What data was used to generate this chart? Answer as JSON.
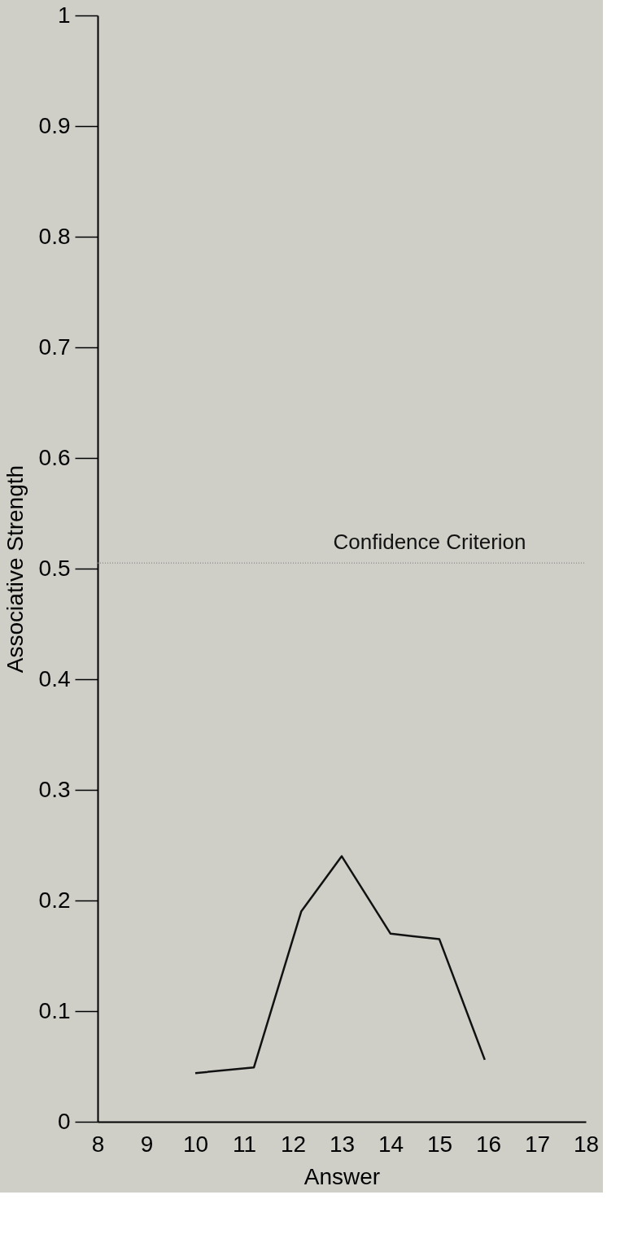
{
  "chart_data": {
    "type": "line",
    "xlabel": "Answer",
    "ylabel": "Associative Strength",
    "x": [
      10,
      11.2,
      12.17,
      13,
      14,
      15,
      15.93
    ],
    "series": [
      {
        "color": "#111111",
        "values": [
          0.044,
          0.049,
          0.19,
          0.24,
          0.17,
          0.165,
          0.056
        ]
      }
    ],
    "xlim": [
      8,
      18
    ],
    "xticks": [
      8,
      9,
      10,
      11,
      12,
      13,
      14,
      15,
      16,
      17,
      18
    ],
    "ylim": [
      0,
      1
    ],
    "yticks": [
      0,
      0.1,
      0.2,
      0.3,
      0.4,
      0.5,
      0.6,
      0.7,
      0.8,
      0.9,
      1
    ],
    "ref_lines": [
      {
        "axis": "y",
        "value": 0.505,
        "label": "Confidence Criterion",
        "color": "#888888",
        "line_style": "dotted"
      }
    ],
    "grid": false,
    "marker": "none",
    "line_style": "solid"
  }
}
